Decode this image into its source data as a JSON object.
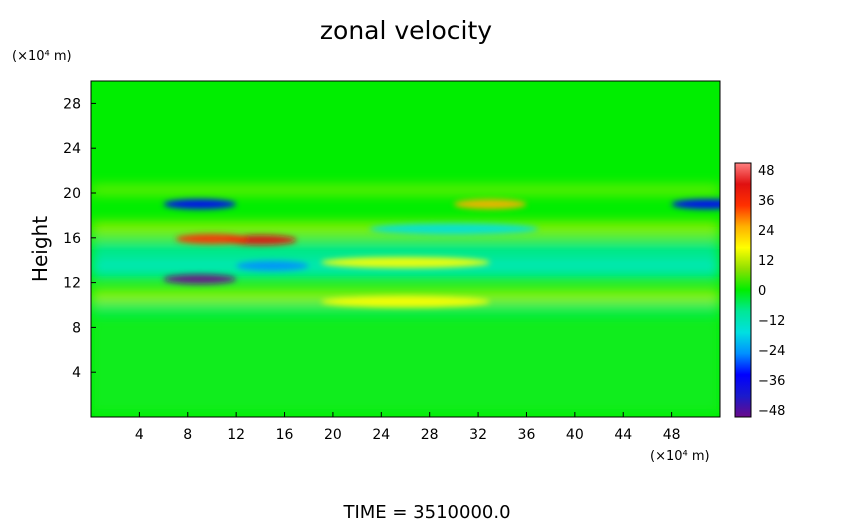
{
  "chart_data": {
    "type": "heatmap",
    "title": "zonal velocity",
    "ylabel": "Height",
    "xunit": "(×10⁴ m)",
    "yunit": "(×10⁴ m)",
    "xlim": [
      0,
      52
    ],
    "ylim": [
      0,
      30
    ],
    "xticks": [
      4,
      8,
      12,
      16,
      20,
      24,
      28,
      32,
      36,
      40,
      44,
      48
    ],
    "yticks": [
      4,
      8,
      12,
      16,
      20,
      24,
      28
    ],
    "colorbar": {
      "levels": [
        48,
        36,
        24,
        12,
        0,
        -12,
        -24,
        -36,
        -48
      ],
      "labels": [
        "48",
        "36",
        "24",
        "12",
        "0",
        "−12",
        "−24",
        "−36",
        "−48"
      ],
      "min": -48,
      "max": 48,
      "colors": [
        "#6a0a8a",
        "#1a1acc",
        "#0000ff",
        "#0090ff",
        "#00e0e0",
        "#00e896",
        "#00ee00",
        "#90e000",
        "#ffff00",
        "#ffb000",
        "#ff3000",
        "#e01010",
        "#ff8080"
      ]
    },
    "features": [
      {
        "x": 9,
        "y": 12.3,
        "value": -45
      },
      {
        "x": 9,
        "y": 19.0,
        "value": -34
      },
      {
        "x": 51,
        "y": 19.0,
        "value": -32
      },
      {
        "x": 14,
        "y": 15.8,
        "value": 38
      },
      {
        "x": 10,
        "y": 15.9,
        "value": 32
      },
      {
        "x": 33,
        "y": 19.0,
        "value": 24
      },
      {
        "x": 30,
        "y": 16.8,
        "value": -18
      },
      {
        "x": 15,
        "y": 13.5,
        "value": -22
      },
      {
        "x": 26,
        "y": 10.3,
        "value": 16
      },
      {
        "x": 26,
        "y": 13.8,
        "value": 12
      }
    ]
  },
  "footer": {
    "time_label": "TIME  =  3510000.0"
  }
}
